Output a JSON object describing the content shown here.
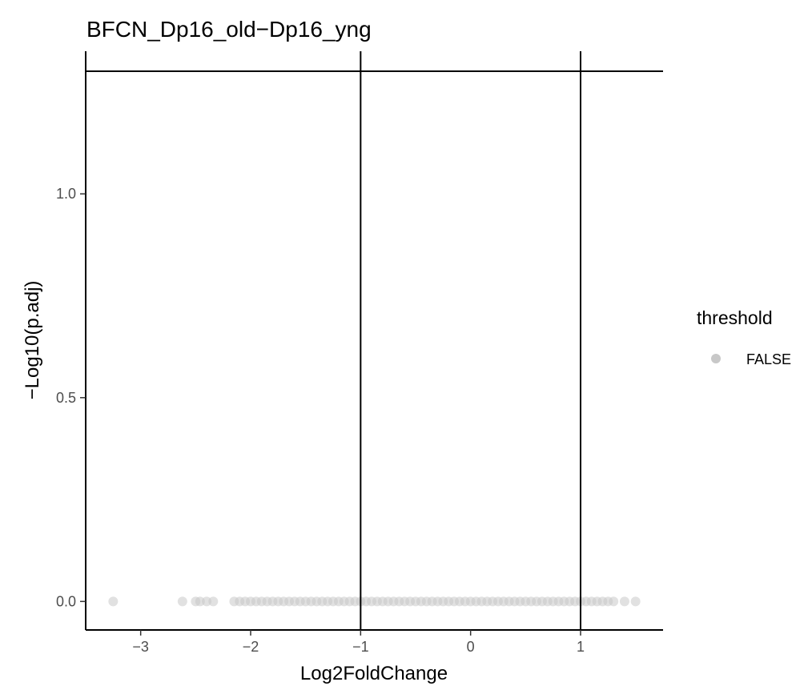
{
  "chart_data": {
    "type": "scatter",
    "title": "BFCN_Dp16_old−Dp16_yng",
    "xlabel": "Log2FoldChange",
    "ylabel": "−Log10(p.adj)",
    "xlim": [
      -3.5,
      1.75
    ],
    "ylim": [
      -0.07,
      1.35
    ],
    "xticks": [
      -3,
      -2,
      -1,
      0,
      1
    ],
    "xtick_labels": [
      "−3",
      "−2",
      "−1",
      "0",
      "1"
    ],
    "yticks": [
      0.0,
      0.5,
      1.0
    ],
    "ytick_labels": [
      "0.0",
      "0.5",
      "1.0"
    ],
    "reference_lines": {
      "vertical_x": [
        -1,
        1
      ],
      "horizontal_y": [
        1.301
      ]
    },
    "grid": false,
    "legend": {
      "title": "threshold",
      "position": "right",
      "entries": [
        {
          "label": "FALSE",
          "color": "#c8c8c8"
        }
      ]
    },
    "series": [
      {
        "name": "FALSE",
        "color": "#c8c8c8",
        "x": [
          -3.25,
          -2.62,
          -2.5,
          -2.46,
          -2.4,
          -2.34,
          -2.15,
          -2.1,
          -2.05,
          -2.0,
          -1.95,
          -1.9,
          -1.85,
          -1.8,
          -1.75,
          -1.7,
          -1.65,
          -1.6,
          -1.55,
          -1.5,
          -1.45,
          -1.4,
          -1.35,
          -1.3,
          -1.25,
          -1.2,
          -1.15,
          -1.1,
          -1.05,
          -1.0,
          -0.95,
          -0.9,
          -0.85,
          -0.8,
          -0.75,
          -0.7,
          -0.65,
          -0.6,
          -0.55,
          -0.5,
          -0.45,
          -0.4,
          -0.35,
          -0.3,
          -0.25,
          -0.2,
          -0.15,
          -0.1,
          -0.05,
          0.0,
          0.05,
          0.1,
          0.15,
          0.2,
          0.25,
          0.3,
          0.35,
          0.4,
          0.45,
          0.5,
          0.55,
          0.6,
          0.65,
          0.7,
          0.75,
          0.8,
          0.85,
          0.9,
          0.95,
          1.0,
          1.05,
          1.1,
          1.15,
          1.2,
          1.25,
          1.3,
          1.4,
          1.5
        ],
        "y": [
          0,
          0,
          0,
          0,
          0,
          0,
          0,
          0,
          0,
          0,
          0,
          0,
          0,
          0,
          0,
          0,
          0,
          0,
          0,
          0,
          0,
          0,
          0,
          0,
          0,
          0,
          0,
          0,
          0,
          0,
          0,
          0,
          0,
          0,
          0,
          0,
          0,
          0,
          0,
          0,
          0,
          0,
          0,
          0,
          0,
          0,
          0,
          0,
          0,
          0,
          0,
          0,
          0,
          0,
          0,
          0,
          0,
          0,
          0,
          0,
          0,
          0,
          0,
          0,
          0,
          0,
          0,
          0,
          0,
          0,
          0,
          0,
          0,
          0,
          0,
          0,
          0,
          0
        ]
      }
    ]
  }
}
